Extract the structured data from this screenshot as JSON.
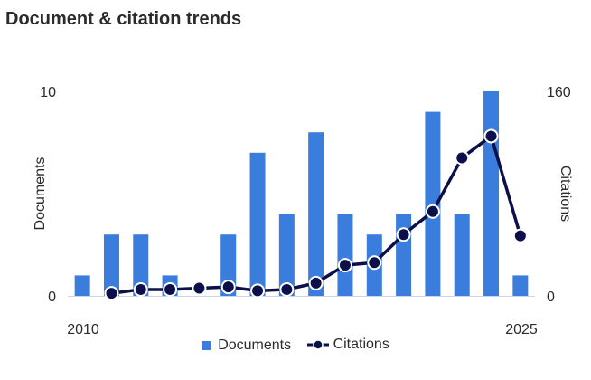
{
  "title": "Document & citation trends",
  "chart_data": {
    "type": "bar+line",
    "x": [
      2010,
      2011,
      2012,
      2013,
      2014,
      2015,
      2016,
      2017,
      2018,
      2019,
      2020,
      2021,
      2022,
      2023,
      2024,
      2025
    ],
    "xticks": [
      "2010",
      "2025"
    ],
    "series": [
      {
        "name": "Documents",
        "type": "bar",
        "axis": "left",
        "color": "#3b7ddd",
        "values": [
          1,
          3,
          3,
          1,
          0,
          3,
          7,
          4,
          8,
          4,
          3,
          4,
          9,
          4,
          10,
          1
        ]
      },
      {
        "name": "Citations",
        "type": "line",
        "axis": "right",
        "color": "#0b0f4a",
        "values": [
          null,
          2,
          5,
          5,
          6,
          7,
          4,
          5,
          10,
          24,
          26,
          48,
          66,
          108,
          125,
          47
        ]
      }
    ],
    "ylabel_left": "Documents",
    "ylabel_right": "Citations",
    "ylim_left": [
      0,
      10
    ],
    "ylim_right": [
      0,
      160
    ],
    "yticks_left": [
      "0",
      "10"
    ],
    "yticks_right": [
      "0",
      "160"
    ],
    "grid": false,
    "legend_position": "bottom"
  },
  "legend": {
    "documents": "Documents",
    "citations": "Citations"
  }
}
